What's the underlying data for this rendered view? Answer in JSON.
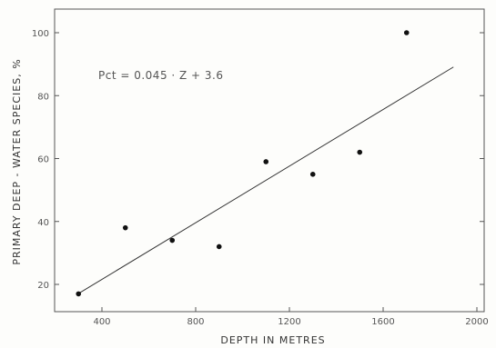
{
  "chart_data": {
    "type": "scatter",
    "title": "",
    "xlabel": "DEPTH IN METRES",
    "ylabel": "PRIMARY DEEP - WATER SPECIES, %",
    "xlim": [
      200,
      2000
    ],
    "ylim": [
      10,
      105
    ],
    "x_ticks": [
      400,
      800,
      1200,
      1600,
      2000
    ],
    "x_tick_labels": [
      "400",
      "800",
      "1200",
      "1600",
      "2000"
    ],
    "y_ticks": [
      20,
      40,
      60,
      80,
      100
    ],
    "y_tick_labels": [
      "20",
      "40",
      "60",
      "80",
      "100"
    ],
    "grid": false,
    "series": [
      {
        "points": [
          {
            "x": 300,
            "y": 17
          },
          {
            "x": 500,
            "y": 38
          },
          {
            "x": 700,
            "y": 34
          },
          {
            "x": 900,
            "y": 32
          },
          {
            "x": 1100,
            "y": 59
          },
          {
            "x": 1300,
            "y": 55
          },
          {
            "x": 1500,
            "y": 62
          },
          {
            "x": 1700,
            "y": 100
          }
        ]
      }
    ],
    "regression_line": {
      "x_start": 300,
      "x_end": 1900
    },
    "annotations": [
      {
        "text": "Pct = 0.045 · Z + 3.6"
      }
    ]
  },
  "colors": {
    "axis": "#555555",
    "line": "#333333",
    "point": "#111111"
  }
}
